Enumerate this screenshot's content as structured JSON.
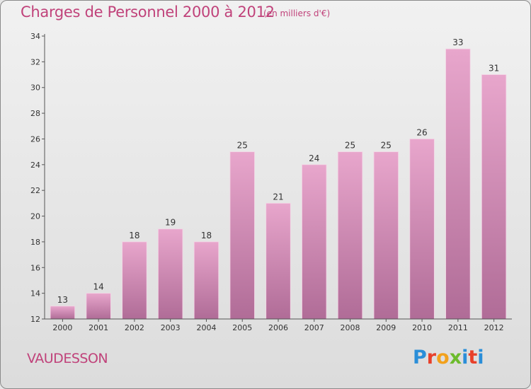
{
  "header": {
    "title": "Charges de Personnel 2000 à 2012",
    "subtitle": "(en milliers d'€)"
  },
  "footer": {
    "commune": "VAUDESSON",
    "logo": {
      "letters": [
        "P",
        "r",
        "o",
        "x",
        "i",
        "t",
        "i"
      ],
      "text": "Proxiti"
    }
  },
  "colors": {
    "title": "#c0427a",
    "bar_top": "#e8a6cc",
    "bar_bottom": "#b06c97",
    "axis": "#555555"
  },
  "chart_data": {
    "type": "bar",
    "title": "Charges de Personnel 2000 à 2012",
    "subtitle": "(en milliers d'€)",
    "xlabel": "",
    "ylabel": "",
    "categories": [
      "2000",
      "2001",
      "2002",
      "2003",
      "2004",
      "2005",
      "2006",
      "2007",
      "2008",
      "2009",
      "2010",
      "2011",
      "2012"
    ],
    "values": [
      13,
      14,
      18,
      19,
      18,
      25,
      21,
      24,
      25,
      25,
      26,
      33,
      31
    ],
    "ylim": [
      12,
      34
    ],
    "yticks": [
      12,
      14,
      16,
      18,
      20,
      22,
      24,
      26,
      28,
      30,
      32,
      34
    ],
    "grid": false,
    "legend": "none"
  }
}
